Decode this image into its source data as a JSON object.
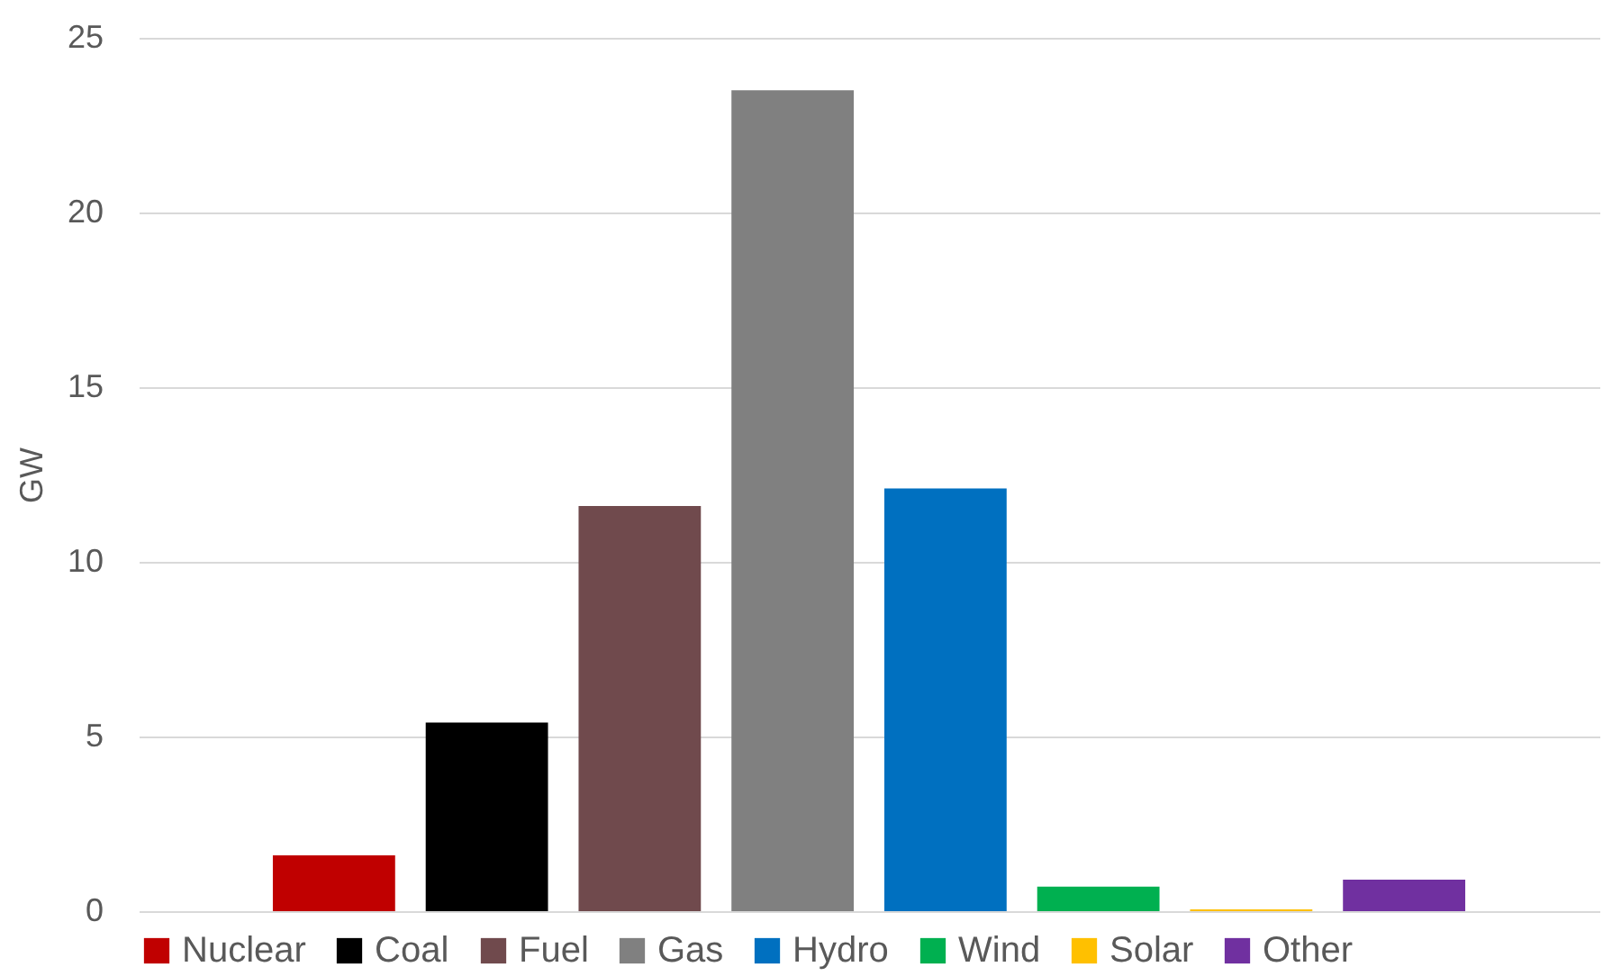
{
  "chart_data": {
    "type": "bar",
    "ylabel": "GW",
    "categories": [
      null
    ],
    "series": [
      {
        "name": "Nuclear",
        "color": "#c00000",
        "values": [
          1.6
        ]
      },
      {
        "name": "Coal",
        "color": "#000000",
        "values": [
          5.4
        ]
      },
      {
        "name": "Fuel",
        "color": "#704a4d",
        "values": [
          11.6
        ]
      },
      {
        "name": "Gas",
        "color": "#808080",
        "values": [
          23.5
        ]
      },
      {
        "name": "Hydro",
        "color": "#0070c0",
        "values": [
          12.1
        ]
      },
      {
        "name": "Wind",
        "color": "#00b050",
        "values": [
          0.7
        ]
      },
      {
        "name": "Solar",
        "color": "#ffc000",
        "values": [
          0.05
        ]
      },
      {
        "name": "Other",
        "color": "#7030a0",
        "values": [
          0.9
        ]
      }
    ],
    "ylim": [
      0,
      25
    ],
    "yticks": [
      0,
      5,
      10,
      15,
      20,
      25
    ],
    "grid": "y",
    "legend": "bottom",
    "tick_labels": "y"
  }
}
